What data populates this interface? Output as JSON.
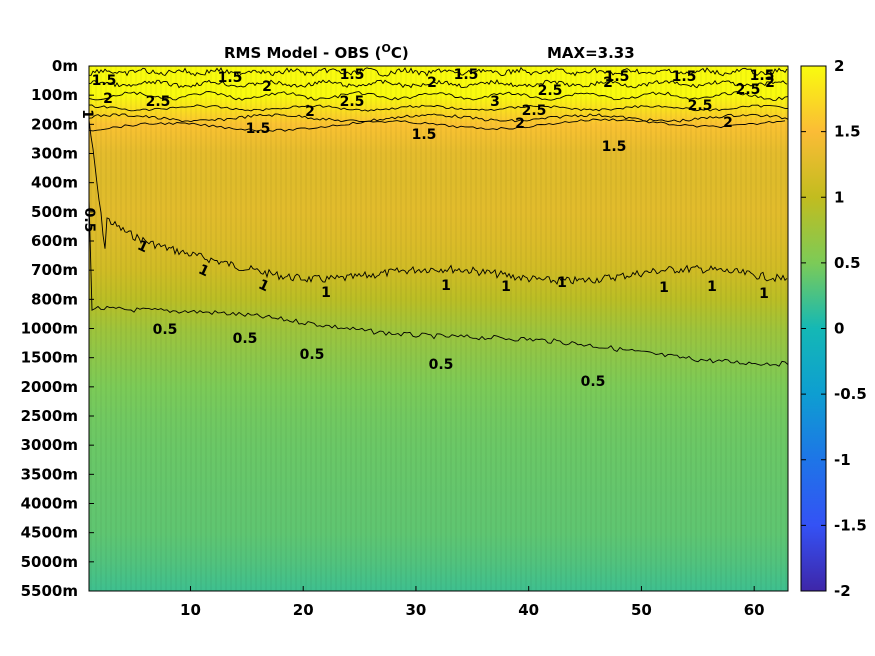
{
  "chart_data": {
    "type": "heatmap",
    "title": "RMS Model - OBS (",
    "title_sup": "O",
    "title_unit": "C)",
    "max_label": "MAX=3.33",
    "x_ticks": [
      10,
      20,
      30,
      40,
      50,
      60
    ],
    "x_range": [
      1,
      63
    ],
    "y_tick_labels": [
      "0m",
      "100m",
      "200m",
      "300m",
      "400m",
      "500m",
      "600m",
      "700m",
      "800m",
      "1000m",
      "1500m",
      "2000m",
      "2500m",
      "3000m",
      "3500m",
      "4000m",
      "4500m",
      "5000m",
      "5500m"
    ],
    "colorbar": {
      "range": [
        -2,
        2
      ],
      "ticks": [
        2,
        1.5,
        1,
        0.5,
        0,
        -0.5,
        -1,
        -1.5,
        -2
      ],
      "tick_labels": [
        "2",
        "1.5",
        "1",
        "0.5",
        "0",
        "-0.5",
        "-1",
        "-1.5",
        "-2"
      ],
      "colormap": "parula"
    },
    "rms_profile": [
      {
        "level": "0m",
        "value": 2.0
      },
      {
        "level": "100m",
        "value": 2.3
      },
      {
        "level": "200m",
        "value": 1.55
      },
      {
        "level": "300m",
        "value": 1.3
      },
      {
        "level": "400m",
        "value": 1.25
      },
      {
        "level": "500m",
        "value": 1.28
      },
      {
        "level": "600m",
        "value": 1.22
      },
      {
        "level": "700m",
        "value": 1.12
      },
      {
        "level": "800m",
        "value": 0.95
      },
      {
        "level": "1000m",
        "value": 0.75
      },
      {
        "level": "1500m",
        "value": 0.62
      },
      {
        "level": "2000m",
        "value": 0.5
      },
      {
        "level": "2500m",
        "value": 0.45
      },
      {
        "level": "3000m",
        "value": 0.42
      },
      {
        "level": "3500m",
        "value": 0.4
      },
      {
        "level": "4000m",
        "value": 0.38
      },
      {
        "level": "4500m",
        "value": 0.36
      },
      {
        "level": "5000m",
        "value": 0.3
      },
      {
        "level": "5500m",
        "value": 0.2
      }
    ],
    "contour_labels": [
      {
        "text": "1.5",
        "x": 2.5,
        "level": "0m"
      },
      {
        "text": "1.5",
        "x": 14,
        "level": "0m"
      },
      {
        "text": "1.5",
        "x": 24,
        "level": "0m"
      },
      {
        "text": "1.5",
        "x": 34,
        "level": "0m"
      },
      {
        "text": "1.5",
        "x": 47,
        "level": "0m"
      },
      {
        "text": "1.5",
        "x": 54,
        "level": "0m"
      },
      {
        "text": "1.5",
        "x": 60.5,
        "level": "0m"
      },
      {
        "text": "2",
        "x": 17,
        "level": "100m"
      },
      {
        "text": "2",
        "x": 31,
        "level": "0m"
      },
      {
        "text": "2",
        "x": 47,
        "level": "0m"
      },
      {
        "text": "2",
        "x": 62,
        "level": "0m"
      },
      {
        "text": "2.5",
        "x": 7,
        "level": "100m"
      },
      {
        "text": "2.5",
        "x": 42,
        "level": "100m"
      },
      {
        "text": "2.5",
        "x": 60,
        "level": "100m"
      },
      {
        "text": "2",
        "x": 2.5,
        "level": "100m"
      },
      {
        "text": "2",
        "x": 20,
        "level": "100m"
      },
      {
        "text": "2.5",
        "x": 25,
        "level": "100m"
      },
      {
        "text": "3",
        "x": 37,
        "level": "100m"
      },
      {
        "text": "2.5",
        "x": 41,
        "level": "100m"
      },
      {
        "text": "2.5",
        "x": 56,
        "level": "100m"
      },
      {
        "text": "2",
        "x": 40,
        "level": "200m"
      },
      {
        "text": "2",
        "x": 58,
        "level": "200m"
      },
      {
        "text": "1.5",
        "x": 16,
        "level": "200m"
      },
      {
        "text": "1.5",
        "x": 30,
        "level": "200m"
      },
      {
        "text": "1.5",
        "x": 49,
        "level": "300m"
      },
      {
        "text": "1",
        "x": 1,
        "level": "200m"
      },
      {
        "text": "0.5",
        "x": 1,
        "level": "500m"
      },
      {
        "text": "1",
        "x": 6,
        "level": "700m"
      },
      {
        "text": "1",
        "x": 12,
        "level": "700m"
      },
      {
        "text": "1",
        "x": 17,
        "level": "800m"
      },
      {
        "text": "1",
        "x": 22,
        "level": "800m"
      },
      {
        "text": "1",
        "x": 31,
        "level": "800m"
      },
      {
        "text": "1",
        "x": 40,
        "level": "800m"
      },
      {
        "text": "1",
        "x": 44,
        "level": "800m"
      },
      {
        "text": "1",
        "x": 51,
        "level": "800m"
      },
      {
        "text": "1",
        "x": 56,
        "level": "800m"
      },
      {
        "text": "1",
        "x": 62,
        "level": "800m"
      },
      {
        "text": "0.5",
        "x": 7,
        "level": "1000m"
      },
      {
        "text": "0.5",
        "x": 14,
        "level": "1500m"
      },
      {
        "text": "0.5",
        "x": 20,
        "level": "1500m"
      },
      {
        "text": "0.5",
        "x": 33,
        "level": "1500m"
      },
      {
        "text": "0.5",
        "x": 47,
        "level": "2000m"
      }
    ]
  }
}
